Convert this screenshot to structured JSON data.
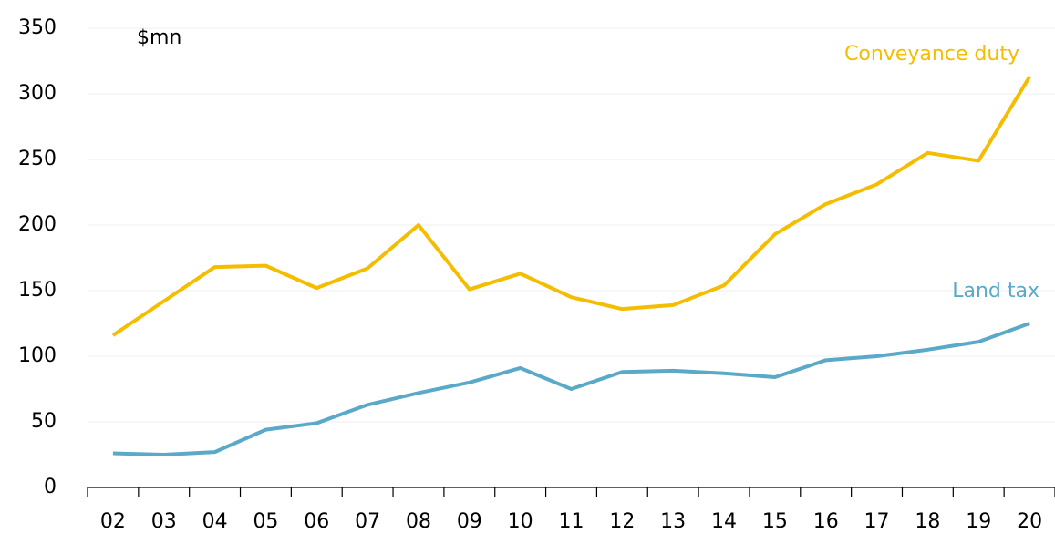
{
  "chart_data": {
    "type": "line",
    "unit_label": "$mn",
    "categories": [
      "02",
      "03",
      "04",
      "05",
      "06",
      "07",
      "08",
      "09",
      "10",
      "11",
      "12",
      "13",
      "14",
      "15",
      "16",
      "17",
      "18",
      "19",
      "20"
    ],
    "series": [
      {
        "name": "Conveyance duty",
        "color": "#f5bd00",
        "values": [
          116,
          142,
          168,
          169,
          152,
          167,
          200,
          151,
          163,
          145,
          136,
          139,
          154,
          193,
          216,
          231,
          255,
          249,
          313
        ]
      },
      {
        "name": "Land tax",
        "color": "#5aa9c9",
        "values": [
          26,
          25,
          27,
          44,
          49,
          63,
          72,
          80,
          91,
          75,
          88,
          89,
          87,
          84,
          97,
          100,
          105,
          111,
          125
        ]
      }
    ],
    "ylim": [
      0,
      350
    ],
    "yticks": [
      0,
      50,
      100,
      150,
      200,
      250,
      300,
      350
    ],
    "grid": true
  }
}
